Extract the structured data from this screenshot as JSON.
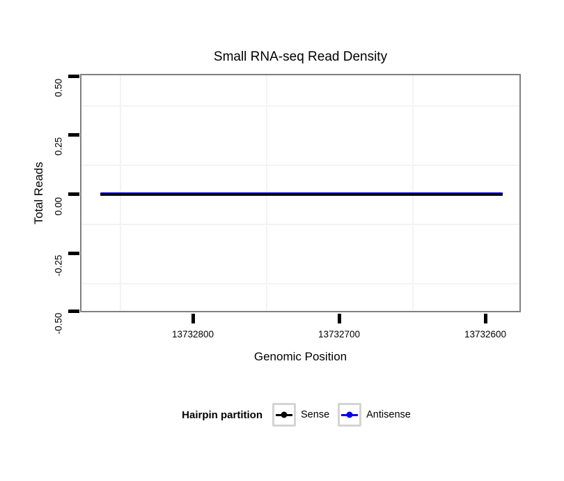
{
  "title": "Small RNA-seq Read Density",
  "y_axis": {
    "label": "Total Reads",
    "tick_labels": [
      "0.50",
      "0.25",
      "0.00",
      "-0.25",
      "-0.50"
    ]
  },
  "x_axis": {
    "label": "Genomic Position",
    "tick_labels": [
      "13732800",
      "13732700",
      "13732600"
    ]
  },
  "legend": {
    "title": "Hairpin partition",
    "items": [
      {
        "label": "Sense",
        "color": "#000000"
      },
      {
        "label": "Antisense",
        "color": "#0000EE"
      }
    ]
  },
  "colors": {
    "panel_border": "#7f7f7f",
    "grid_minor": "#f3f3f3",
    "tick": "#000000",
    "text": "#000000",
    "legend_key_border": "#d4d4d4"
  },
  "chart_data": {
    "type": "line",
    "title": "Small RNA-seq Read Density",
    "xlabel": "Genomic Position",
    "ylabel": "Total Reads",
    "x_reversed": true,
    "xlim": [
      13732877,
      13732576
    ],
    "x_ticks": [
      13732800,
      13732700,
      13732600
    ],
    "x_minor_gridlines": [
      13732850,
      13732750,
      13732650
    ],
    "ylim": [
      -0.5,
      0.5
    ],
    "y_ticks": [
      0.5,
      0.25,
      0.0,
      -0.25,
      -0.5
    ],
    "y_minor_gridlines": [
      0.375,
      0.125,
      -0.125,
      -0.375
    ],
    "grid": "minor-only",
    "legend_title": "Hairpin partition",
    "legend_position": "bottom",
    "series": [
      {
        "name": "Sense",
        "color": "#000000",
        "x": [
          13732863,
          13732588
        ],
        "y": [
          0,
          0
        ]
      },
      {
        "name": "Antisense",
        "color": "#0000EE",
        "x": [
          13732863,
          13732588
        ],
        "y": [
          0,
          0
        ]
      }
    ]
  }
}
